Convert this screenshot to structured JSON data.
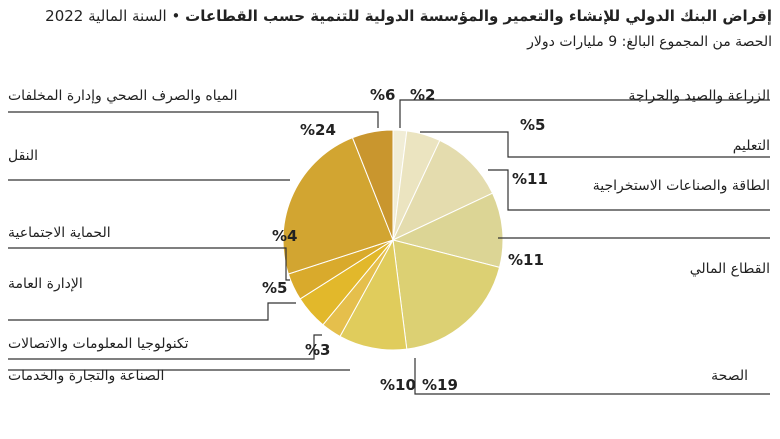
{
  "title": {
    "main": "إقراض البنك الدولي للإنشاء والتعمير والمؤسسة الدولية للتنمية حسب القطاعات",
    "separator": "•",
    "year": "السنة المالية 2022"
  },
  "subtitle": "الحصة من المجموع البالغ: 9 مليارات دولار",
  "chart_data": {
    "type": "pie",
    "title": "إقراض البنك الدولي للإنشاء والتعمير والمؤسسة الدولية للتنمية حسب القطاعات",
    "subtitle": "الحصة من المجموع البالغ: 9 مليارات دولار",
    "slices": [
      {
        "label": "الزراعة والصيد والحراجة",
        "value": 2,
        "display": "%2",
        "color": "#f1edd6"
      },
      {
        "label": "التعليم",
        "value": 5,
        "display": "%5",
        "color": "#ebe4c0"
      },
      {
        "label": "الطاقة والصناعات الاستخراجية",
        "value": 11,
        "display": "%11",
        "color": "#e4dcae"
      },
      {
        "label": "القطاع المالي",
        "value": 11,
        "display": "%11",
        "color": "#dcd595"
      },
      {
        "label": "الصحة",
        "value": 19,
        "display": "%19",
        "color": "#dcd073"
      },
      {
        "label": "الصناعة والتجارة والخدمات",
        "value": 10,
        "display": "%10",
        "color": "#e0cc5c"
      },
      {
        "label": "تكنولوجيا المعلومات والاتصالات",
        "value": 3,
        "display": "%3",
        "color": "#e5bf4c"
      },
      {
        "label": "الإدارة العامة",
        "value": 5,
        "display": "%5",
        "color": "#e2b82b"
      },
      {
        "label": "الحماية الاجتماعية",
        "value": 4,
        "display": "%4",
        "color": "#d9aa2c"
      },
      {
        "label": "النقل",
        "value": 24,
        "display": "%24",
        "color": "#d2a531"
      },
      {
        "label": "المياه والصرف الصحي وإدارة المخلفات",
        "value": 6,
        "display": "%6",
        "color": "#c9962e"
      }
    ]
  }
}
